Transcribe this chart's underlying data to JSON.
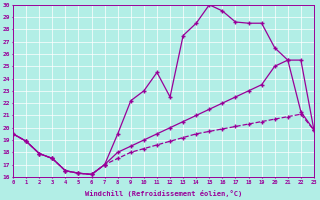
{
  "xlabel": "Windchill (Refroidissement éolien,°C)",
  "bg_color": "#b2eee6",
  "line_color": "#990099",
  "grid_color": "#ffffff",
  "ylim": [
    16,
    30
  ],
  "xlim": [
    0,
    23
  ],
  "yticks": [
    16,
    17,
    18,
    19,
    20,
    21,
    22,
    23,
    24,
    25,
    26,
    27,
    28,
    29,
    30
  ],
  "xticks": [
    0,
    1,
    2,
    3,
    4,
    5,
    6,
    7,
    8,
    9,
    10,
    11,
    12,
    13,
    14,
    15,
    16,
    17,
    18,
    19,
    20,
    21,
    22,
    23
  ],
  "line1_x": [
    0,
    1,
    2,
    3,
    4,
    5,
    6,
    7,
    8,
    9,
    10,
    11,
    12,
    13,
    14,
    15,
    16,
    17,
    18,
    19,
    20,
    21,
    22,
    23
  ],
  "line1_y": [
    19.5,
    18.9,
    17.9,
    17.5,
    16.5,
    16.3,
    16.2,
    17.0,
    19.5,
    22.2,
    23.0,
    24.5,
    22.5,
    27.5,
    28.5,
    30.0,
    29.5,
    28.6,
    28.5,
    28.5,
    26.5,
    25.5,
    21.3,
    19.8
  ],
  "line2_x": [
    0,
    1,
    2,
    3,
    4,
    5,
    6,
    7,
    8,
    9,
    10,
    11,
    12,
    13,
    14,
    15,
    16,
    17,
    18,
    19,
    20,
    21,
    22,
    23
  ],
  "line2_y": [
    19.5,
    18.9,
    17.9,
    17.5,
    16.5,
    16.3,
    16.2,
    17.0,
    18.0,
    18.5,
    19.0,
    19.5,
    20.0,
    20.5,
    21.0,
    21.5,
    22.0,
    22.5,
    23.0,
    23.5,
    25.0,
    25.5,
    25.5,
    19.8
  ],
  "line3_x": [
    0,
    1,
    2,
    3,
    4,
    5,
    6,
    7,
    8,
    9,
    10,
    11,
    12,
    13,
    14,
    15,
    16,
    17,
    18,
    19,
    20,
    21,
    22,
    23
  ],
  "line3_y": [
    19.5,
    18.9,
    17.9,
    17.5,
    16.5,
    16.3,
    16.2,
    17.0,
    17.5,
    18.0,
    18.3,
    18.6,
    18.9,
    19.2,
    19.5,
    19.7,
    19.9,
    20.1,
    20.3,
    20.5,
    20.7,
    20.9,
    21.1,
    19.8
  ],
  "marker": "+",
  "marker_size": 3,
  "linewidth": 0.9
}
